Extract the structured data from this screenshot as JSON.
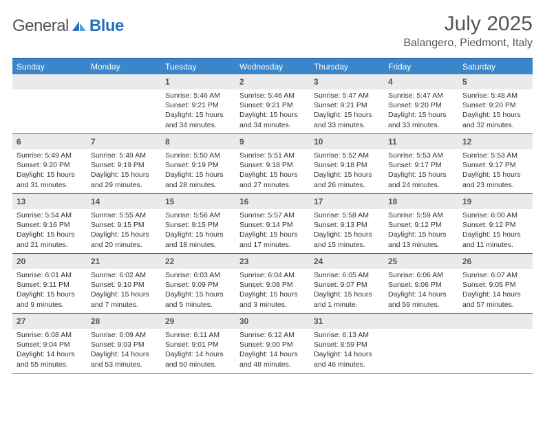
{
  "logo": {
    "word1": "General",
    "word2": "Blue"
  },
  "title": "July 2025",
  "location": "Balangero, Piedmont, Italy",
  "colors": {
    "header_bar": "#3a86c8",
    "accent_border": "#2a71b8",
    "daynum_bg": "#e9eaec",
    "text": "#333333",
    "muted": "#555555",
    "bg": "#ffffff"
  },
  "typography": {
    "title_fontsize": 30,
    "location_fontsize": 16,
    "dow_fontsize": 12,
    "daynum_fontsize": 12,
    "body_fontsize": 10.5
  },
  "dow": [
    "Sunday",
    "Monday",
    "Tuesday",
    "Wednesday",
    "Thursday",
    "Friday",
    "Saturday"
  ],
  "weeks": [
    [
      null,
      null,
      {
        "n": "1",
        "sr": "Sunrise: 5:46 AM",
        "ss": "Sunset: 9:21 PM",
        "dl": "Daylight: 15 hours and 34 minutes."
      },
      {
        "n": "2",
        "sr": "Sunrise: 5:46 AM",
        "ss": "Sunset: 9:21 PM",
        "dl": "Daylight: 15 hours and 34 minutes."
      },
      {
        "n": "3",
        "sr": "Sunrise: 5:47 AM",
        "ss": "Sunset: 9:21 PM",
        "dl": "Daylight: 15 hours and 33 minutes."
      },
      {
        "n": "4",
        "sr": "Sunrise: 5:47 AM",
        "ss": "Sunset: 9:20 PM",
        "dl": "Daylight: 15 hours and 33 minutes."
      },
      {
        "n": "5",
        "sr": "Sunrise: 5:48 AM",
        "ss": "Sunset: 9:20 PM",
        "dl": "Daylight: 15 hours and 32 minutes."
      }
    ],
    [
      {
        "n": "6",
        "sr": "Sunrise: 5:49 AM",
        "ss": "Sunset: 9:20 PM",
        "dl": "Daylight: 15 hours and 31 minutes."
      },
      {
        "n": "7",
        "sr": "Sunrise: 5:49 AM",
        "ss": "Sunset: 9:19 PM",
        "dl": "Daylight: 15 hours and 29 minutes."
      },
      {
        "n": "8",
        "sr": "Sunrise: 5:50 AM",
        "ss": "Sunset: 9:19 PM",
        "dl": "Daylight: 15 hours and 28 minutes."
      },
      {
        "n": "9",
        "sr": "Sunrise: 5:51 AM",
        "ss": "Sunset: 9:18 PM",
        "dl": "Daylight: 15 hours and 27 minutes."
      },
      {
        "n": "10",
        "sr": "Sunrise: 5:52 AM",
        "ss": "Sunset: 9:18 PM",
        "dl": "Daylight: 15 hours and 26 minutes."
      },
      {
        "n": "11",
        "sr": "Sunrise: 5:53 AM",
        "ss": "Sunset: 9:17 PM",
        "dl": "Daylight: 15 hours and 24 minutes."
      },
      {
        "n": "12",
        "sr": "Sunrise: 5:53 AM",
        "ss": "Sunset: 9:17 PM",
        "dl": "Daylight: 15 hours and 23 minutes."
      }
    ],
    [
      {
        "n": "13",
        "sr": "Sunrise: 5:54 AM",
        "ss": "Sunset: 9:16 PM",
        "dl": "Daylight: 15 hours and 21 minutes."
      },
      {
        "n": "14",
        "sr": "Sunrise: 5:55 AM",
        "ss": "Sunset: 9:15 PM",
        "dl": "Daylight: 15 hours and 20 minutes."
      },
      {
        "n": "15",
        "sr": "Sunrise: 5:56 AM",
        "ss": "Sunset: 9:15 PM",
        "dl": "Daylight: 15 hours and 18 minutes."
      },
      {
        "n": "16",
        "sr": "Sunrise: 5:57 AM",
        "ss": "Sunset: 9:14 PM",
        "dl": "Daylight: 15 hours and 17 minutes."
      },
      {
        "n": "17",
        "sr": "Sunrise: 5:58 AM",
        "ss": "Sunset: 9:13 PM",
        "dl": "Daylight: 15 hours and 15 minutes."
      },
      {
        "n": "18",
        "sr": "Sunrise: 5:59 AM",
        "ss": "Sunset: 9:12 PM",
        "dl": "Daylight: 15 hours and 13 minutes."
      },
      {
        "n": "19",
        "sr": "Sunrise: 6:00 AM",
        "ss": "Sunset: 9:12 PM",
        "dl": "Daylight: 15 hours and 11 minutes."
      }
    ],
    [
      {
        "n": "20",
        "sr": "Sunrise: 6:01 AM",
        "ss": "Sunset: 9:11 PM",
        "dl": "Daylight: 15 hours and 9 minutes."
      },
      {
        "n": "21",
        "sr": "Sunrise: 6:02 AM",
        "ss": "Sunset: 9:10 PM",
        "dl": "Daylight: 15 hours and 7 minutes."
      },
      {
        "n": "22",
        "sr": "Sunrise: 6:03 AM",
        "ss": "Sunset: 9:09 PM",
        "dl": "Daylight: 15 hours and 5 minutes."
      },
      {
        "n": "23",
        "sr": "Sunrise: 6:04 AM",
        "ss": "Sunset: 9:08 PM",
        "dl": "Daylight: 15 hours and 3 minutes."
      },
      {
        "n": "24",
        "sr": "Sunrise: 6:05 AM",
        "ss": "Sunset: 9:07 PM",
        "dl": "Daylight: 15 hours and 1 minute."
      },
      {
        "n": "25",
        "sr": "Sunrise: 6:06 AM",
        "ss": "Sunset: 9:06 PM",
        "dl": "Daylight: 14 hours and 59 minutes."
      },
      {
        "n": "26",
        "sr": "Sunrise: 6:07 AM",
        "ss": "Sunset: 9:05 PM",
        "dl": "Daylight: 14 hours and 57 minutes."
      }
    ],
    [
      {
        "n": "27",
        "sr": "Sunrise: 6:08 AM",
        "ss": "Sunset: 9:04 PM",
        "dl": "Daylight: 14 hours and 55 minutes."
      },
      {
        "n": "28",
        "sr": "Sunrise: 6:09 AM",
        "ss": "Sunset: 9:03 PM",
        "dl": "Daylight: 14 hours and 53 minutes."
      },
      {
        "n": "29",
        "sr": "Sunrise: 6:11 AM",
        "ss": "Sunset: 9:01 PM",
        "dl": "Daylight: 14 hours and 50 minutes."
      },
      {
        "n": "30",
        "sr": "Sunrise: 6:12 AM",
        "ss": "Sunset: 9:00 PM",
        "dl": "Daylight: 14 hours and 48 minutes."
      },
      {
        "n": "31",
        "sr": "Sunrise: 6:13 AM",
        "ss": "Sunset: 8:59 PM",
        "dl": "Daylight: 14 hours and 46 minutes."
      },
      null,
      null
    ]
  ]
}
